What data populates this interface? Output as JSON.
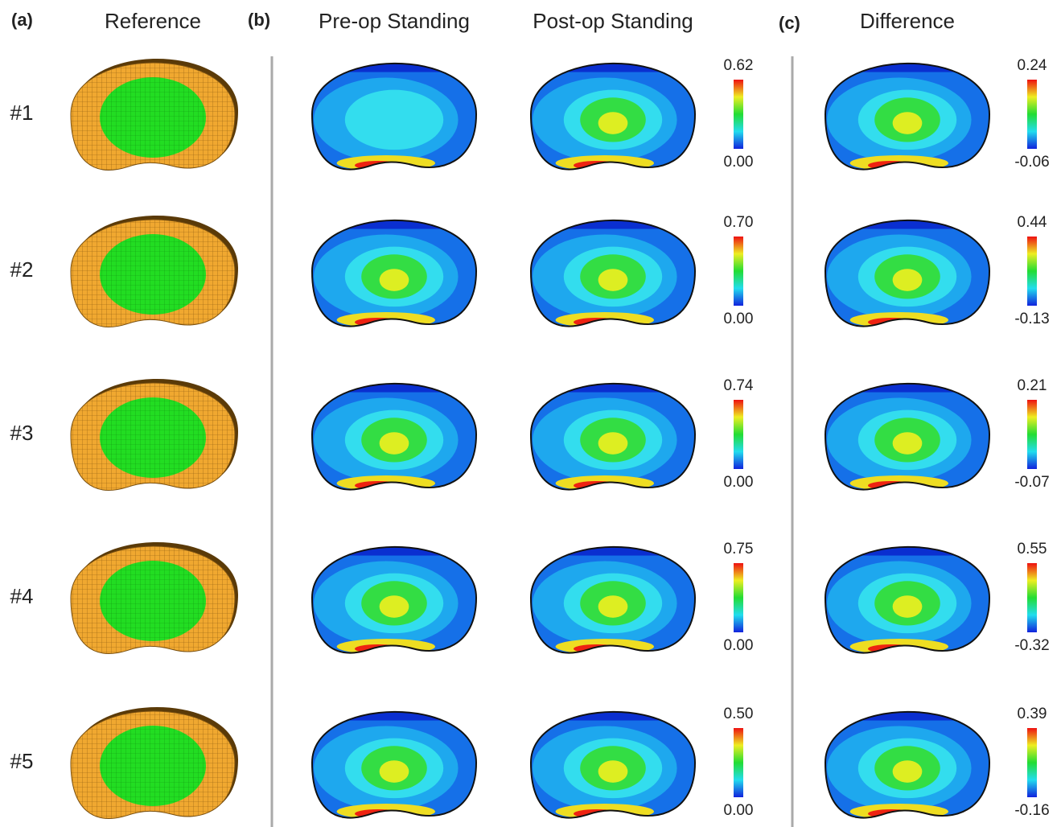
{
  "panels": {
    "a": "(a)",
    "b": "(b)",
    "c": "(c)"
  },
  "headers": {
    "reference": "Reference",
    "preop": "Pre-op Standing",
    "postop": "Post-op Standing",
    "difference": "Difference"
  },
  "rows": [
    {
      "label": "#1",
      "stress_max": "0.62",
      "stress_min": "0.00",
      "diff_max": "0.24",
      "diff_min": "-0.06"
    },
    {
      "label": "#2",
      "stress_max": "0.70",
      "stress_min": "0.00",
      "diff_max": "0.44",
      "diff_min": "-0.13"
    },
    {
      "label": "#3",
      "stress_max": "0.74",
      "stress_min": "0.00",
      "diff_max": "0.21",
      "diff_min": "-0.07"
    },
    {
      "label": "#4",
      "stress_max": "0.75",
      "stress_min": "0.00",
      "diff_max": "0.55",
      "diff_min": "-0.32"
    },
    {
      "label": "#5",
      "stress_max": "0.50",
      "stress_min": "0.00",
      "diff_max": "0.39",
      "diff_min": "-0.16"
    }
  ]
}
